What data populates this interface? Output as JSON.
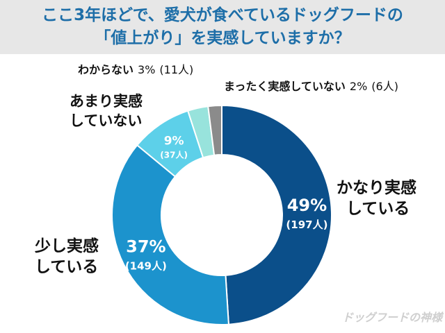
{
  "title": {
    "line1": "ここ3年ほどで、愛犬が食べているドッグフードの",
    "line2": "「値上がり」を実感していますか？"
  },
  "chart_data": {
    "type": "donut",
    "slices": [
      {
        "label_line1": "かなり実感",
        "label_line2": "している",
        "percent": 49,
        "count": 197,
        "percent_text": "49%",
        "count_text": "(197人)",
        "color": "#0b4f8a"
      },
      {
        "label_line1": "少し実感",
        "label_line2": "している",
        "percent": 37,
        "count": 149,
        "percent_text": "37%",
        "count_text": "(149人)",
        "color": "#1c93cd"
      },
      {
        "label_line1": "あまり実感",
        "label_line2": "していない",
        "percent": 9,
        "count": 37,
        "percent_text": "9%",
        "count_text": "(37人)",
        "color": "#5dd0e9"
      },
      {
        "label_line1": "わからない",
        "label_line2": "",
        "percent": 3,
        "count": 11,
        "percent_text": "3%",
        "count_text": "(11人)",
        "color": "#98e3dc"
      },
      {
        "label_line1": "まったく実感していない",
        "label_line2": "",
        "percent": 2,
        "count": 6,
        "percent_text": "2%",
        "count_text": "(6人)",
        "color": "#8b8b8b"
      }
    ]
  },
  "watermark": "ドッグフードの神様"
}
